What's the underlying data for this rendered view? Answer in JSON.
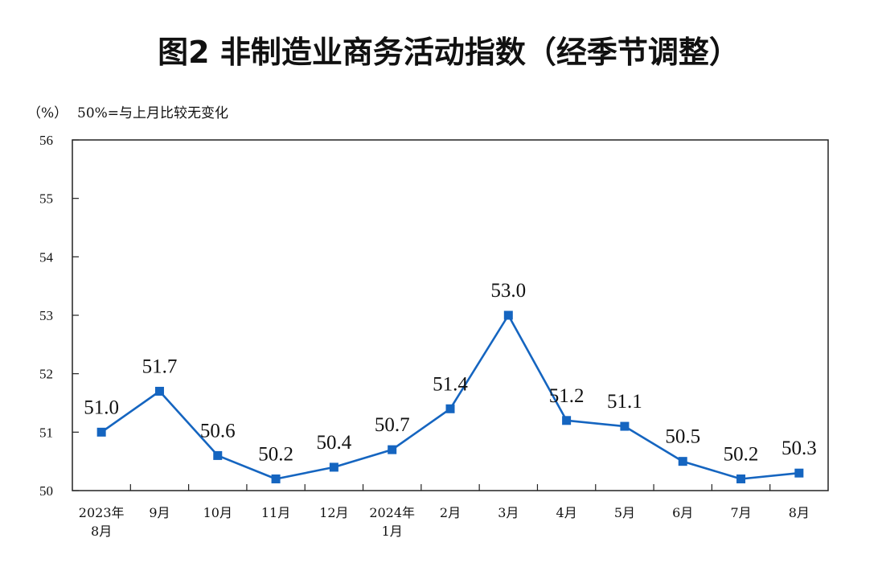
{
  "chart_data": {
    "type": "line",
    "title": "图2  非制造业商务活动指数（经季节调整）",
    "unit_label": "（%）",
    "note": "50%=与上月比较无变化",
    "categories": [
      [
        "2023年",
        "8月"
      ],
      [
        "9月"
      ],
      [
        "10月"
      ],
      [
        "11月"
      ],
      [
        "12月"
      ],
      [
        "2024年",
        "1月"
      ],
      [
        "2月"
      ],
      [
        "3月"
      ],
      [
        "4月"
      ],
      [
        "5月"
      ],
      [
        "6月"
      ],
      [
        "7月"
      ],
      [
        "8月"
      ]
    ],
    "series": [
      {
        "values": [
          51.0,
          51.7,
          50.6,
          50.2,
          50.4,
          50.7,
          51.4,
          53.0,
          51.2,
          51.1,
          50.5,
          50.2,
          50.3
        ],
        "labels": [
          "51.0",
          "51.7",
          "50.6",
          "50.2",
          "50.4",
          "50.7",
          "51.4",
          "53.0",
          "51.2",
          "51.1",
          "50.5",
          "50.2",
          "50.3"
        ],
        "color": "#1565C0"
      }
    ],
    "ylim": [
      50,
      56
    ],
    "yticks": [
      "50",
      "51",
      "52",
      "53",
      "54",
      "55",
      "56"
    ],
    "grid": false,
    "legend": "none",
    "marker": "square"
  }
}
